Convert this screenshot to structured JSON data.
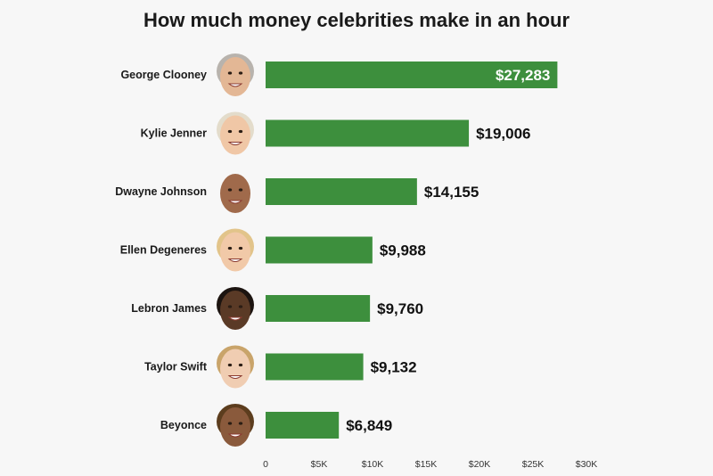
{
  "chart_data": {
    "type": "bar",
    "orientation": "horizontal",
    "title": "How much money celebrities make in an hour",
    "xlabel": "",
    "ylabel": "",
    "categories": [
      "George Clooney",
      "Kylie Jenner",
      "Dwayne Johnson",
      "Ellen Degeneres",
      "Lebron James",
      "Taylor Swift",
      "Beyonce"
    ],
    "values": [
      27283,
      19006,
      14155,
      9988,
      9760,
      9132,
      6849
    ],
    "value_labels": [
      "$27,283",
      "$19,006",
      "$14,155",
      "$9,988",
      "$9,760",
      "$9,132",
      "$6,849"
    ],
    "xlim": [
      0,
      30000
    ],
    "x_ticks": [
      0,
      5000,
      10000,
      15000,
      20000,
      25000,
      30000
    ],
    "x_tick_labels": [
      "0",
      "$5K",
      "$10K",
      "$15K",
      "$20K",
      "$25K",
      "$30K"
    ],
    "grid": false,
    "legend": "none",
    "colors": {
      "bar": "#3d8f3d",
      "label_inside": "#ffffff",
      "label_outside": "#111111",
      "background": "#f7f7f7"
    },
    "icons": [
      "face-photo-icon"
    ]
  }
}
